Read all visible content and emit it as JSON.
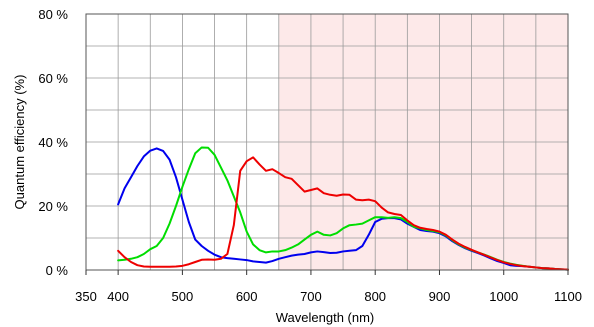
{
  "chart_data": {
    "type": "line",
    "xlabel": "Wavelength (nm)",
    "ylabel": "Quantum efficiency (%)",
    "xlim": [
      350,
      1100
    ],
    "ylim": [
      0,
      80
    ],
    "x_ticks": [
      350,
      400,
      500,
      600,
      700,
      800,
      900,
      1000,
      1100
    ],
    "x_tick_labels": [
      "350",
      "400",
      "500",
      "600",
      "700",
      "800",
      "900",
      "1000",
      "1100"
    ],
    "y_ticks": [
      0,
      20,
      40,
      60,
      80
    ],
    "y_tick_labels": [
      "0 %",
      "20 %",
      "40 %",
      "60 %",
      "80 %"
    ],
    "grid": true,
    "x_minor_grid_step": 50,
    "y_minor_grid_step": 10,
    "shaded_region": {
      "x_from": 650,
      "x_to": 1100,
      "color": "#fde9e9"
    },
    "series": [
      {
        "color": "#0000ee",
        "points": [
          [
            400,
            20.5
          ],
          [
            410,
            25.5
          ],
          [
            420,
            29
          ],
          [
            430,
            32.5
          ],
          [
            440,
            35.5
          ],
          [
            450,
            37.3
          ],
          [
            460,
            38
          ],
          [
            470,
            37.2
          ],
          [
            480,
            34.5
          ],
          [
            490,
            29
          ],
          [
            500,
            22
          ],
          [
            510,
            15
          ],
          [
            520,
            9.5
          ],
          [
            530,
            7.5
          ],
          [
            540,
            6
          ],
          [
            550,
            4.8
          ],
          [
            560,
            4
          ],
          [
            570,
            3.7
          ],
          [
            580,
            3.5
          ],
          [
            590,
            3.3
          ],
          [
            600,
            3.1
          ],
          [
            610,
            2.7
          ],
          [
            620,
            2.5
          ],
          [
            630,
            2.3
          ],
          [
            640,
            2.8
          ],
          [
            650,
            3.5
          ],
          [
            660,
            4
          ],
          [
            670,
            4.5
          ],
          [
            680,
            4.8
          ],
          [
            690,
            5
          ],
          [
            700,
            5.5
          ],
          [
            710,
            5.8
          ],
          [
            720,
            5.6
          ],
          [
            730,
            5.3
          ],
          [
            740,
            5.4
          ],
          [
            750,
            5.8
          ],
          [
            760,
            6
          ],
          [
            770,
            6.2
          ],
          [
            780,
            7.5
          ],
          [
            790,
            11
          ],
          [
            800,
            15
          ],
          [
            810,
            16
          ],
          [
            820,
            16.2
          ],
          [
            830,
            16.2
          ],
          [
            840,
            15.8
          ],
          [
            850,
            14.5
          ],
          [
            860,
            13.5
          ],
          [
            870,
            12.5
          ],
          [
            880,
            12.2
          ],
          [
            890,
            12
          ],
          [
            900,
            11.5
          ],
          [
            910,
            10.5
          ],
          [
            920,
            9
          ],
          [
            930,
            7.8
          ],
          [
            940,
            6.8
          ],
          [
            950,
            6
          ],
          [
            960,
            5.3
          ],
          [
            970,
            4.5
          ],
          [
            980,
            3.6
          ],
          [
            990,
            2.8
          ],
          [
            1000,
            2.2
          ],
          [
            1010,
            1.5
          ],
          [
            1020,
            1.3
          ],
          [
            1030,
            1.2
          ],
          [
            1040,
            1
          ],
          [
            1050,
            0.8
          ],
          [
            1060,
            0.6
          ],
          [
            1070,
            0.5
          ],
          [
            1080,
            0.3
          ],
          [
            1090,
            0.2
          ],
          [
            1100,
            0.1
          ]
        ]
      },
      {
        "color": "#00dd00",
        "points": [
          [
            400,
            3
          ],
          [
            410,
            3.2
          ],
          [
            420,
            3.5
          ],
          [
            430,
            4
          ],
          [
            440,
            5
          ],
          [
            450,
            6.5
          ],
          [
            460,
            7.5
          ],
          [
            470,
            10
          ],
          [
            480,
            14.5
          ],
          [
            490,
            20
          ],
          [
            500,
            26
          ],
          [
            510,
            31.5
          ],
          [
            520,
            36.5
          ],
          [
            530,
            38.3
          ],
          [
            540,
            38.2
          ],
          [
            550,
            36
          ],
          [
            560,
            32
          ],
          [
            570,
            28
          ],
          [
            580,
            23
          ],
          [
            590,
            18
          ],
          [
            600,
            12
          ],
          [
            610,
            8
          ],
          [
            620,
            6.2
          ],
          [
            630,
            5.5
          ],
          [
            640,
            5.8
          ],
          [
            650,
            5.8
          ],
          [
            660,
            6.2
          ],
          [
            670,
            7
          ],
          [
            680,
            8
          ],
          [
            690,
            9.5
          ],
          [
            700,
            11
          ],
          [
            710,
            12
          ],
          [
            720,
            11
          ],
          [
            730,
            10.8
          ],
          [
            740,
            11.5
          ],
          [
            750,
            13
          ],
          [
            760,
            14
          ],
          [
            770,
            14.2
          ],
          [
            780,
            14.5
          ],
          [
            790,
            15.5
          ],
          [
            800,
            16.5
          ],
          [
            810,
            16.5
          ],
          [
            820,
            16.3
          ],
          [
            830,
            16.5
          ],
          [
            840,
            16.2
          ],
          [
            850,
            15
          ],
          [
            860,
            13.5
          ],
          [
            870,
            13
          ],
          [
            880,
            12.5
          ],
          [
            890,
            12.2
          ],
          [
            900,
            11.8
          ],
          [
            910,
            10.8
          ],
          [
            920,
            9.3
          ],
          [
            930,
            8
          ],
          [
            940,
            7
          ],
          [
            950,
            6.2
          ],
          [
            960,
            5.5
          ],
          [
            970,
            4.8
          ],
          [
            980,
            4
          ],
          [
            990,
            3.2
          ],
          [
            1000,
            2.5
          ],
          [
            1010,
            2
          ],
          [
            1020,
            1.6
          ],
          [
            1030,
            1.3
          ],
          [
            1040,
            1
          ],
          [
            1050,
            0.8
          ],
          [
            1060,
            0.6
          ],
          [
            1070,
            0.5
          ],
          [
            1080,
            0.3
          ],
          [
            1090,
            0.2
          ],
          [
            1100,
            0.1
          ]
        ]
      },
      {
        "color": "#ee0000",
        "points": [
          [
            400,
            6
          ],
          [
            410,
            4
          ],
          [
            420,
            2.5
          ],
          [
            430,
            1.5
          ],
          [
            440,
            1.1
          ],
          [
            450,
            1
          ],
          [
            460,
            1
          ],
          [
            470,
            1
          ],
          [
            480,
            1
          ],
          [
            490,
            1.1
          ],
          [
            500,
            1.3
          ],
          [
            510,
            1.8
          ],
          [
            520,
            2.5
          ],
          [
            530,
            3.2
          ],
          [
            540,
            3.3
          ],
          [
            550,
            3.2
          ],
          [
            560,
            3.5
          ],
          [
            570,
            5
          ],
          [
            580,
            14
          ],
          [
            590,
            31
          ],
          [
            600,
            34
          ],
          [
            610,
            35.2
          ],
          [
            620,
            33
          ],
          [
            630,
            31
          ],
          [
            640,
            31.5
          ],
          [
            650,
            30.3
          ],
          [
            660,
            29
          ],
          [
            670,
            28.5
          ],
          [
            680,
            26.5
          ],
          [
            690,
            24.5
          ],
          [
            700,
            25
          ],
          [
            710,
            25.5
          ],
          [
            720,
            24
          ],
          [
            730,
            23.5
          ],
          [
            740,
            23.2
          ],
          [
            750,
            23.6
          ],
          [
            760,
            23.5
          ],
          [
            770,
            22
          ],
          [
            780,
            21.8
          ],
          [
            790,
            22
          ],
          [
            800,
            21.5
          ],
          [
            810,
            19.5
          ],
          [
            820,
            18
          ],
          [
            830,
            17.5
          ],
          [
            840,
            17.2
          ],
          [
            850,
            15.5
          ],
          [
            860,
            14
          ],
          [
            870,
            13.2
          ],
          [
            880,
            12.8
          ],
          [
            890,
            12.5
          ],
          [
            900,
            12
          ],
          [
            910,
            11
          ],
          [
            920,
            9.5
          ],
          [
            930,
            8.2
          ],
          [
            940,
            7.2
          ],
          [
            950,
            6.3
          ],
          [
            960,
            5.5
          ],
          [
            970,
            4.7
          ],
          [
            980,
            3.9
          ],
          [
            990,
            3.1
          ],
          [
            1000,
            2.4
          ],
          [
            1010,
            1.9
          ],
          [
            1020,
            1.5
          ],
          [
            1030,
            1.2
          ],
          [
            1040,
            1
          ],
          [
            1050,
            0.8
          ],
          [
            1060,
            0.6
          ],
          [
            1070,
            0.5
          ],
          [
            1080,
            0.3
          ],
          [
            1090,
            0.2
          ],
          [
            1100,
            0.1
          ]
        ]
      }
    ]
  }
}
